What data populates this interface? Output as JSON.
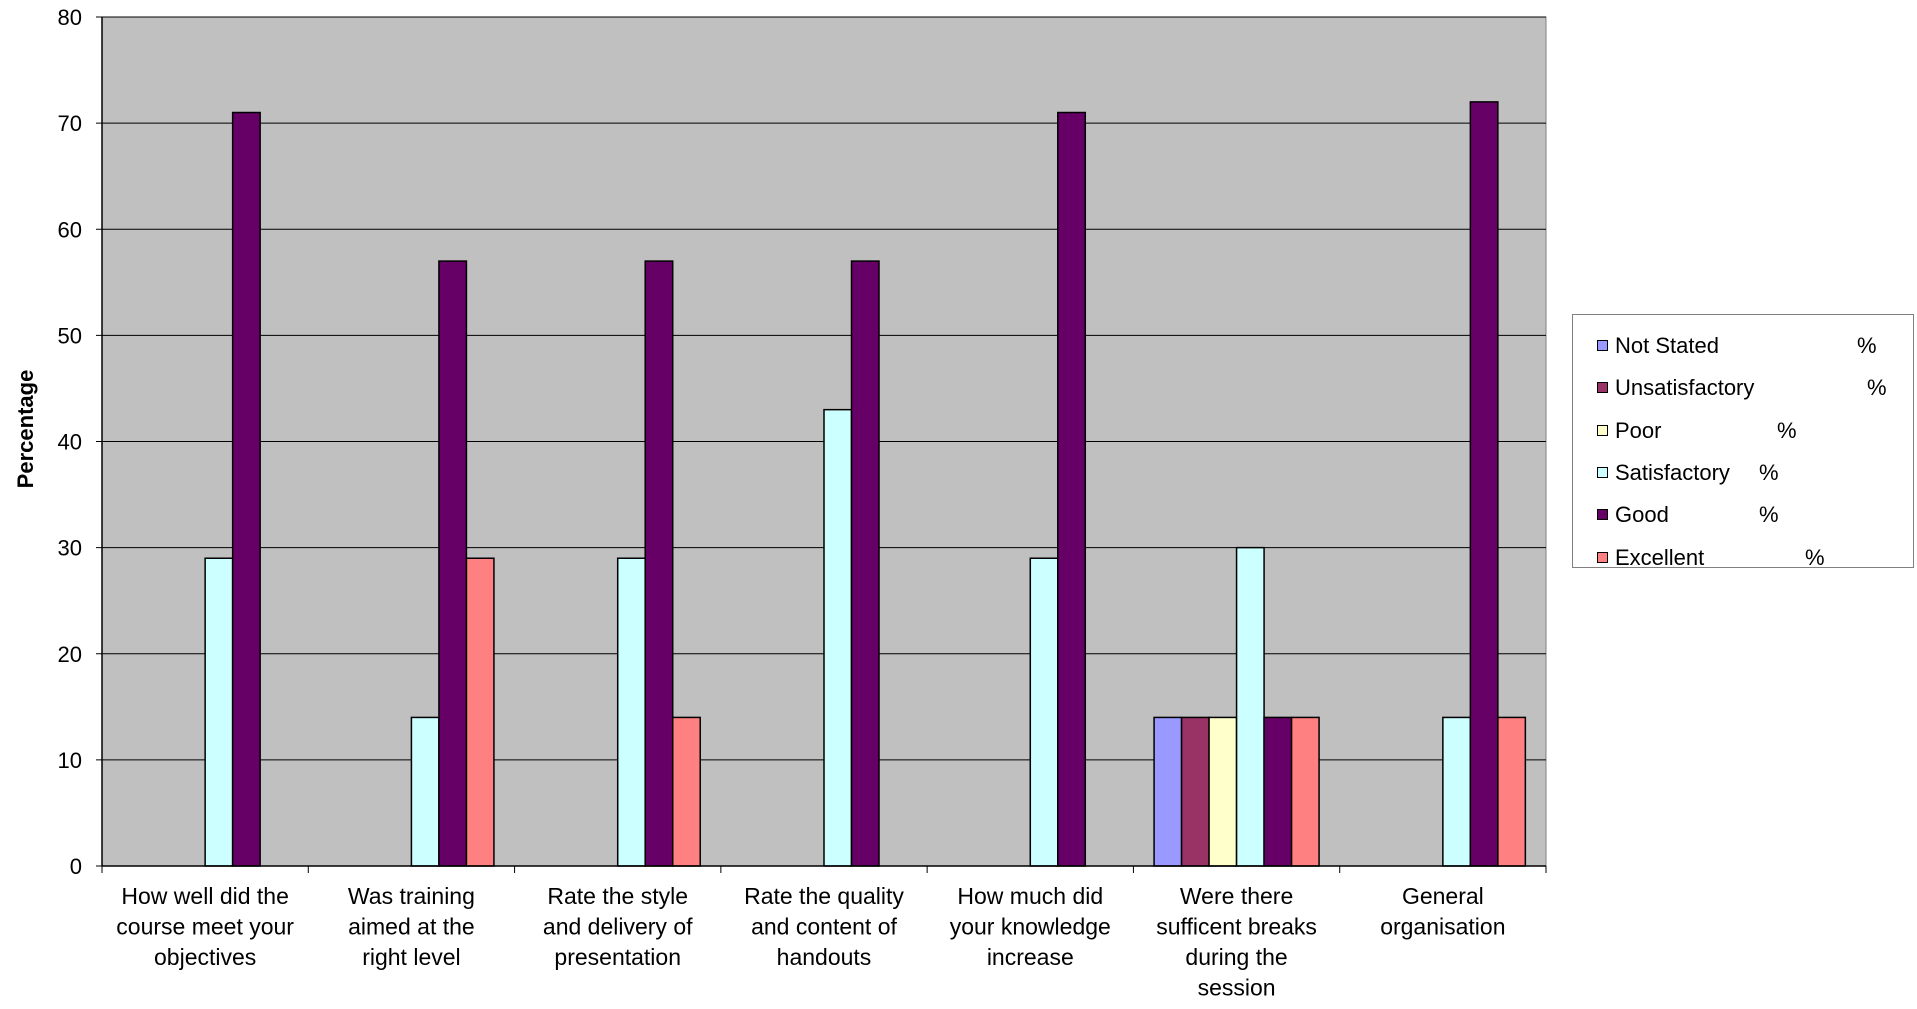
{
  "chart_data": {
    "type": "bar",
    "title": "",
    "xlabel": "",
    "ylabel": "Percentage",
    "ylim": [
      0,
      80
    ],
    "yticks": [
      0,
      10,
      20,
      30,
      40,
      50,
      60,
      70,
      80
    ],
    "grid": true,
    "legend_position": "right",
    "plot_background": "#c0c0c0",
    "categories": [
      [
        "How well did the",
        "course meet your",
        "objectives"
      ],
      [
        "Was training",
        "aimed at the",
        "right level"
      ],
      [
        "Rate the style",
        "and delivery of",
        "presentation"
      ],
      [
        "Rate the quality",
        "and content of",
        "handouts"
      ],
      [
        "How much did",
        "your knowledge",
        "increase"
      ],
      [
        "Were there",
        "sufficent breaks",
        "during the",
        "session"
      ],
      [
        "General",
        "organisation"
      ]
    ],
    "series": [
      {
        "name": "Not Stated",
        "color": "#9999ff",
        "values": [
          0,
          0,
          0,
          0,
          0,
          14,
          0
        ]
      },
      {
        "name": "Unsatisfactory",
        "color": "#993366",
        "values": [
          0,
          0,
          0,
          0,
          0,
          14,
          0
        ]
      },
      {
        "name": "Poor",
        "color": "#ffffcc",
        "values": [
          0,
          0,
          0,
          0,
          0,
          14,
          0
        ]
      },
      {
        "name": "Satisfactory",
        "color": "#ccffff",
        "values": [
          29,
          14,
          29,
          43,
          29,
          30,
          14
        ]
      },
      {
        "name": "Good",
        "color": "#660066",
        "values": [
          71,
          57,
          57,
          57,
          71,
          14,
          72
        ]
      },
      {
        "name": "Excellent",
        "color": "#ff8080",
        "values": [
          0,
          29,
          14,
          0,
          0,
          14,
          14
        ]
      }
    ]
  },
  "legend": {
    "items": [
      {
        "label": "Not Stated",
        "suffix": "%",
        "color": "#9999ff"
      },
      {
        "label": "Unsatisfactory",
        "suffix": "%",
        "color": "#993366"
      },
      {
        "label": "Poor",
        "suffix": "%",
        "color": "#ffffcc"
      },
      {
        "label": "Satisfactory",
        "suffix": "%",
        "color": "#ccffff"
      },
      {
        "label": "Good",
        "suffix": "%",
        "color": "#660066"
      },
      {
        "label": "Excellent",
        "suffix": "%",
        "color": "#ff8080"
      }
    ]
  }
}
